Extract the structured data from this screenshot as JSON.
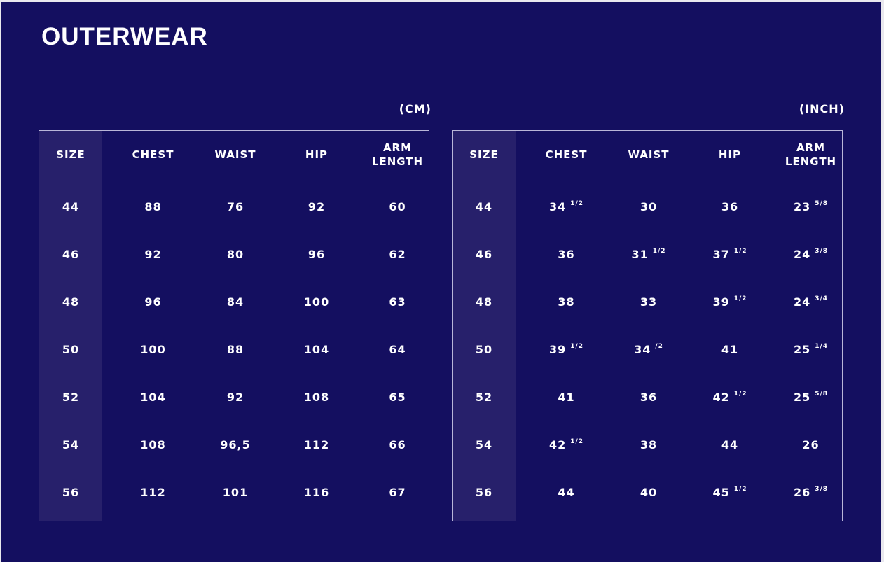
{
  "title": "OUTERWEAR",
  "tables": [
    {
      "unit": "(CM)",
      "headers": [
        "SIZE",
        "CHEST",
        "WAIST",
        "HIP",
        "ARM LENGTH"
      ],
      "rows": [
        [
          [
            "44",
            ""
          ],
          [
            "88",
            ""
          ],
          [
            "76",
            ""
          ],
          [
            "92",
            ""
          ],
          [
            "60",
            ""
          ]
        ],
        [
          [
            "46",
            ""
          ],
          [
            "92",
            ""
          ],
          [
            "80",
            ""
          ],
          [
            "96",
            ""
          ],
          [
            "62",
            ""
          ]
        ],
        [
          [
            "48",
            ""
          ],
          [
            "96",
            ""
          ],
          [
            "84",
            ""
          ],
          [
            "100",
            ""
          ],
          [
            "63",
            ""
          ]
        ],
        [
          [
            "50",
            ""
          ],
          [
            "100",
            ""
          ],
          [
            "88",
            ""
          ],
          [
            "104",
            ""
          ],
          [
            "64",
            ""
          ]
        ],
        [
          [
            "52",
            ""
          ],
          [
            "104",
            ""
          ],
          [
            "92",
            ""
          ],
          [
            "108",
            ""
          ],
          [
            "65",
            ""
          ]
        ],
        [
          [
            "54",
            ""
          ],
          [
            "108",
            ""
          ],
          [
            "96,5",
            ""
          ],
          [
            "112",
            ""
          ],
          [
            "66",
            ""
          ]
        ],
        [
          [
            "56",
            ""
          ],
          [
            "112",
            ""
          ],
          [
            "101",
            ""
          ],
          [
            "116",
            ""
          ],
          [
            "67",
            ""
          ]
        ]
      ]
    },
    {
      "unit": "(INCH)",
      "headers": [
        "SIZE",
        "CHEST",
        "WAIST",
        "HIP",
        "ARM LENGTH"
      ],
      "rows": [
        [
          [
            "44",
            ""
          ],
          [
            "34",
            "1/2"
          ],
          [
            "30",
            ""
          ],
          [
            "36",
            ""
          ],
          [
            "23",
            "5/8"
          ]
        ],
        [
          [
            "46",
            ""
          ],
          [
            "36",
            ""
          ],
          [
            "31",
            "1/2"
          ],
          [
            "37",
            "1/2"
          ],
          [
            "24",
            "3/8"
          ]
        ],
        [
          [
            "48",
            ""
          ],
          [
            "38",
            ""
          ],
          [
            "33",
            ""
          ],
          [
            "39",
            "1/2"
          ],
          [
            "24",
            "3/4"
          ]
        ],
        [
          [
            "50",
            ""
          ],
          [
            "39",
            "1/2"
          ],
          [
            "34",
            "/2"
          ],
          [
            "41",
            ""
          ],
          [
            "25",
            "1/4"
          ]
        ],
        [
          [
            "52",
            ""
          ],
          [
            "41",
            ""
          ],
          [
            "36",
            ""
          ],
          [
            "42",
            "1/2"
          ],
          [
            "25",
            "5/8"
          ]
        ],
        [
          [
            "54",
            ""
          ],
          [
            "42",
            "1/2"
          ],
          [
            "38",
            ""
          ],
          [
            "44",
            ""
          ],
          [
            "26",
            ""
          ]
        ],
        [
          [
            "56",
            ""
          ],
          [
            "44",
            ""
          ],
          [
            "40",
            ""
          ],
          [
            "45",
            "1/2"
          ],
          [
            "26",
            "3/8"
          ]
        ]
      ]
    }
  ],
  "colors": {
    "background": "#140f60",
    "size_column": "#27206b",
    "border": "#b9b6d8",
    "text": "#ffffff"
  }
}
